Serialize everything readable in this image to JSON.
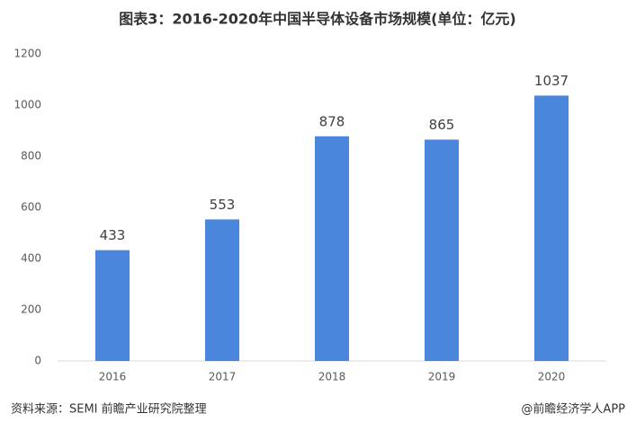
{
  "chart_data": {
    "type": "bar",
    "title": "图表3：2016-2020年中国半导体设备市场规模(单位：亿元)",
    "categories": [
      "2016",
      "2017",
      "2018",
      "2019",
      "2020"
    ],
    "values": [
      433,
      553,
      878,
      865,
      1037
    ],
    "color": "#4a86db",
    "ylim": [
      0,
      1200
    ],
    "yticks": [
      0,
      200,
      400,
      600,
      800,
      1000,
      1200
    ],
    "grid": false,
    "source": "资料来源：SEMI 前瞻产业研究院整理",
    "credit": "@前瞻经济学人APP"
  }
}
